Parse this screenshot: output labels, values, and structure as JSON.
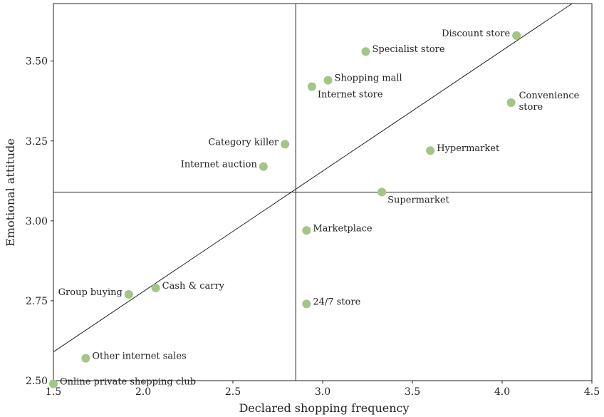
{
  "chart_data": {
    "type": "scatter",
    "title": "",
    "xlabel": "Declared shopping frequency",
    "ylabel": "Emotional attitude",
    "xlim": [
      1.5,
      4.5
    ],
    "ylim": [
      2.5,
      3.68
    ],
    "x_ticks": [
      "1.5",
      "2.0",
      "2.5",
      "3.0",
      "3.5",
      "4.0",
      "4.5"
    ],
    "y_ticks": [
      "2.50",
      "2.75",
      "3.00",
      "3.25",
      "3.50"
    ],
    "quadrant_lines": {
      "x": 2.85,
      "y": 3.09
    },
    "trend_line": {
      "x1": 1.5,
      "y1": 2.59,
      "x2": 4.39,
      "y2": 3.68
    },
    "marker_color": "#a3c585",
    "grid": false,
    "points": [
      {
        "label": "Discount store",
        "x": 4.08,
        "y": 3.58,
        "anchor": "end"
      },
      {
        "label": "Specialist store",
        "x": 3.24,
        "y": 3.53,
        "anchor": "start"
      },
      {
        "label": "Shopping mall",
        "x": 3.03,
        "y": 3.44,
        "anchor": "start"
      },
      {
        "label": "Internet store",
        "x": 2.94,
        "y": 3.42,
        "anchor": "start-below"
      },
      {
        "label": "Convenience store",
        "lines": [
          "Convenience",
          "store"
        ],
        "x": 4.05,
        "y": 3.37,
        "anchor": "start-multiline"
      },
      {
        "label": "Category killer",
        "x": 2.79,
        "y": 3.24,
        "anchor": "end"
      },
      {
        "label": "Hypermarket",
        "x": 3.6,
        "y": 3.22,
        "anchor": "start"
      },
      {
        "label": "Internet auction",
        "x": 2.67,
        "y": 3.17,
        "anchor": "end"
      },
      {
        "label": "Supermarket",
        "x": 3.33,
        "y": 3.09,
        "anchor": "start-below"
      },
      {
        "label": "Marketplace",
        "x": 2.91,
        "y": 2.97,
        "anchor": "start"
      },
      {
        "label": "Group buying",
        "x": 1.92,
        "y": 2.77,
        "anchor": "end"
      },
      {
        "label": "Cash & carry",
        "x": 2.07,
        "y": 2.79,
        "anchor": "start"
      },
      {
        "label": "24/7 store",
        "x": 2.91,
        "y": 2.74,
        "anchor": "start"
      },
      {
        "label": "Other internet sales",
        "x": 1.68,
        "y": 2.57,
        "anchor": "start"
      },
      {
        "label": "Online private shopping club",
        "x": 1.5,
        "y": 2.49,
        "anchor": "start"
      }
    ]
  }
}
